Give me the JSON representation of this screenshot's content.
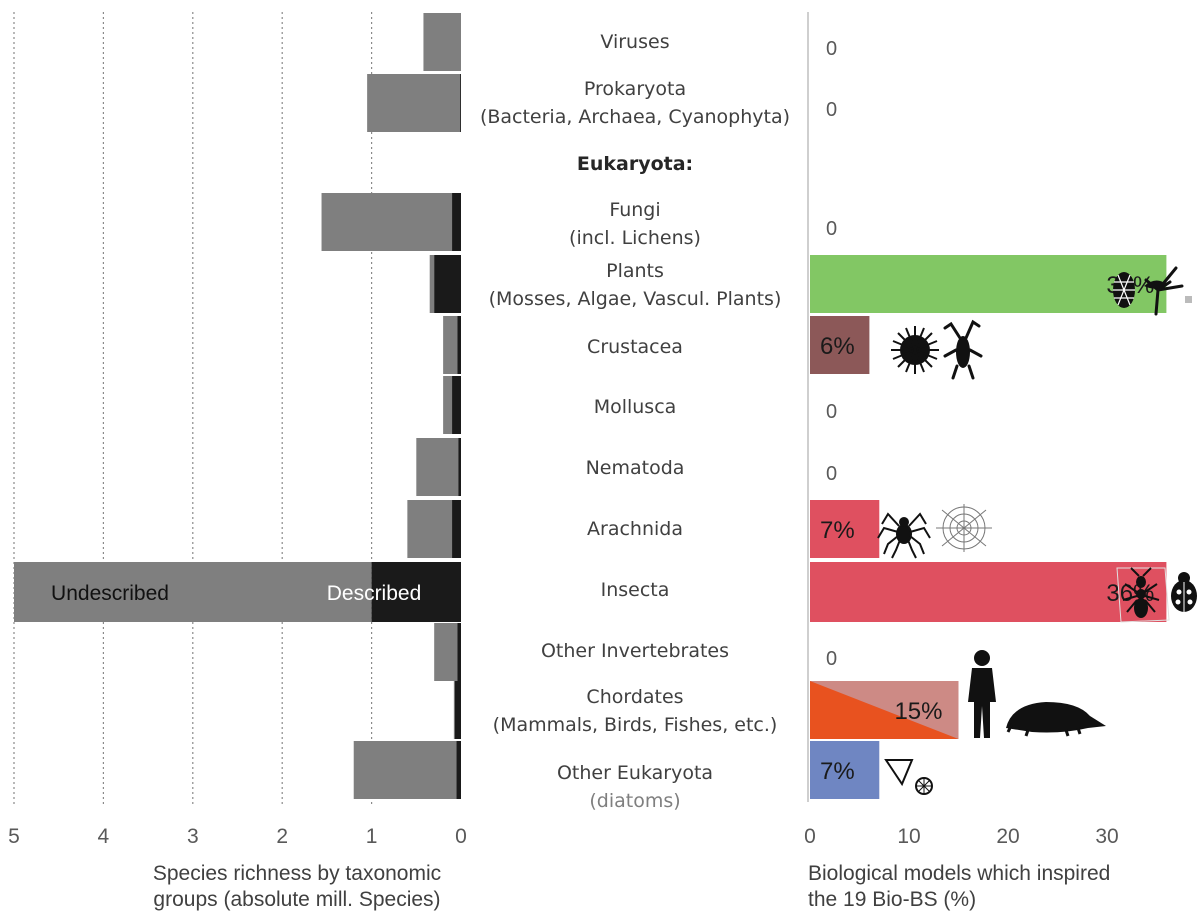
{
  "chart_data": [
    {
      "type": "bar",
      "orientation": "horizontal",
      "stacked": true,
      "direction": "right-to-left",
      "xlabel_lines": [
        "Species richness by taxonomic",
        "groups (absolute mill. Species)"
      ],
      "xlim": [
        0,
        5
      ],
      "xticks": [
        5,
        4,
        3,
        2,
        1,
        0
      ],
      "grid": "vertical dotted",
      "categories": [
        "Viruses",
        "Prokaryota",
        "Fungi",
        "Plants",
        "Crustacea",
        "Mollusca",
        "Nematoda",
        "Arachnida",
        "Insecta",
        "Other Invertebrates",
        "Chordates",
        "Other Eukaryota"
      ],
      "series": [
        {
          "name": "Described",
          "values": [
            0.0,
            0.01,
            0.1,
            0.3,
            0.04,
            0.1,
            0.03,
            0.1,
            1.0,
            0.04,
            0.07,
            0.05
          ]
        },
        {
          "name": "Undescribed",
          "values": [
            0.42,
            1.04,
            1.46,
            0.05,
            0.16,
            0.1,
            0.47,
            0.5,
            4.0,
            0.26,
            0.01,
            1.15
          ]
        }
      ],
      "colors": {
        "Described": "#1a1a1a",
        "Undescribed": "#7f7f7f"
      }
    },
    {
      "type": "bar",
      "orientation": "horizontal",
      "xlabel_lines": [
        "Biological models which inspired",
        "the 19 Bio-BS (%)"
      ],
      "xlim": [
        0,
        40
      ],
      "xticks": [
        0,
        10,
        20,
        30
      ],
      "categories": [
        "Viruses",
        "Prokaryota",
        "Fungi",
        "Plants",
        "Crustacea",
        "Mollusca",
        "Nematoda",
        "Arachnida",
        "Insecta",
        "Other Invertebrates",
        "Chordates",
        "Other Eukaryota"
      ],
      "values": [
        0,
        0,
        0,
        36,
        6,
        0,
        0,
        7,
        36,
        0,
        15,
        7
      ],
      "labels": [
        "0",
        "0",
        "0",
        "36%",
        "6%",
        "0",
        "0",
        "7%",
        "36%",
        "0",
        "15%",
        "7%"
      ],
      "colors": {
        "Plants": "#82c764",
        "Crustacea": "#8c5858",
        "Arachnida": "#df5060",
        "Insecta": "#df5060",
        "Chordates": "#cd8a85",
        "Chordates_overlay": "#e8521f",
        "Other Eukaryota": "#6f86c2"
      }
    }
  ],
  "category_labels": [
    {
      "lines": [
        "Viruses"
      ]
    },
    {
      "lines": [
        "Prokaryota",
        "(Bacteria, Archaea, Cyanophyta)"
      ]
    },
    {
      "lines": [
        "Eukaryota:"
      ],
      "bold": true
    },
    {
      "lines": [
        "Fungi",
        "(incl. Lichens)"
      ]
    },
    {
      "lines": [
        "Plants",
        "(Mosses, Algae, Vascul. Plants)"
      ]
    },
    {
      "lines": [
        "Crustacea"
      ]
    },
    {
      "lines": [
        "Mollusca"
      ]
    },
    {
      "lines": [
        "Nematoda"
      ]
    },
    {
      "lines": [
        "Arachnida"
      ]
    },
    {
      "lines": [
        "Insecta"
      ]
    },
    {
      "lines": [
        "Other Invertebrates"
      ]
    },
    {
      "lines": [
        "Chordates",
        "(Mammals, Birds, Fishes, etc.)"
      ]
    },
    {
      "lines": [
        "Other Eukaryota",
        "(diatoms)"
      ],
      "second_line_grey": true
    }
  ],
  "icons": {
    "Plants": [
      "pine-cone-icon",
      "bird-of-paradise-flower-icon"
    ],
    "Crustacea": [
      "sea-urchin-icon",
      "crayfish-icon"
    ],
    "Arachnida": [
      "spider-icon",
      "spider-web-icon"
    ],
    "Insecta": [
      "ant-icon",
      "beetle-icon"
    ],
    "Chordates": [
      "human-icon",
      "pangolin-icon"
    ],
    "Other Eukaryota": [
      "diatom-triangle-icon",
      "diatom-disc-icon"
    ]
  }
}
